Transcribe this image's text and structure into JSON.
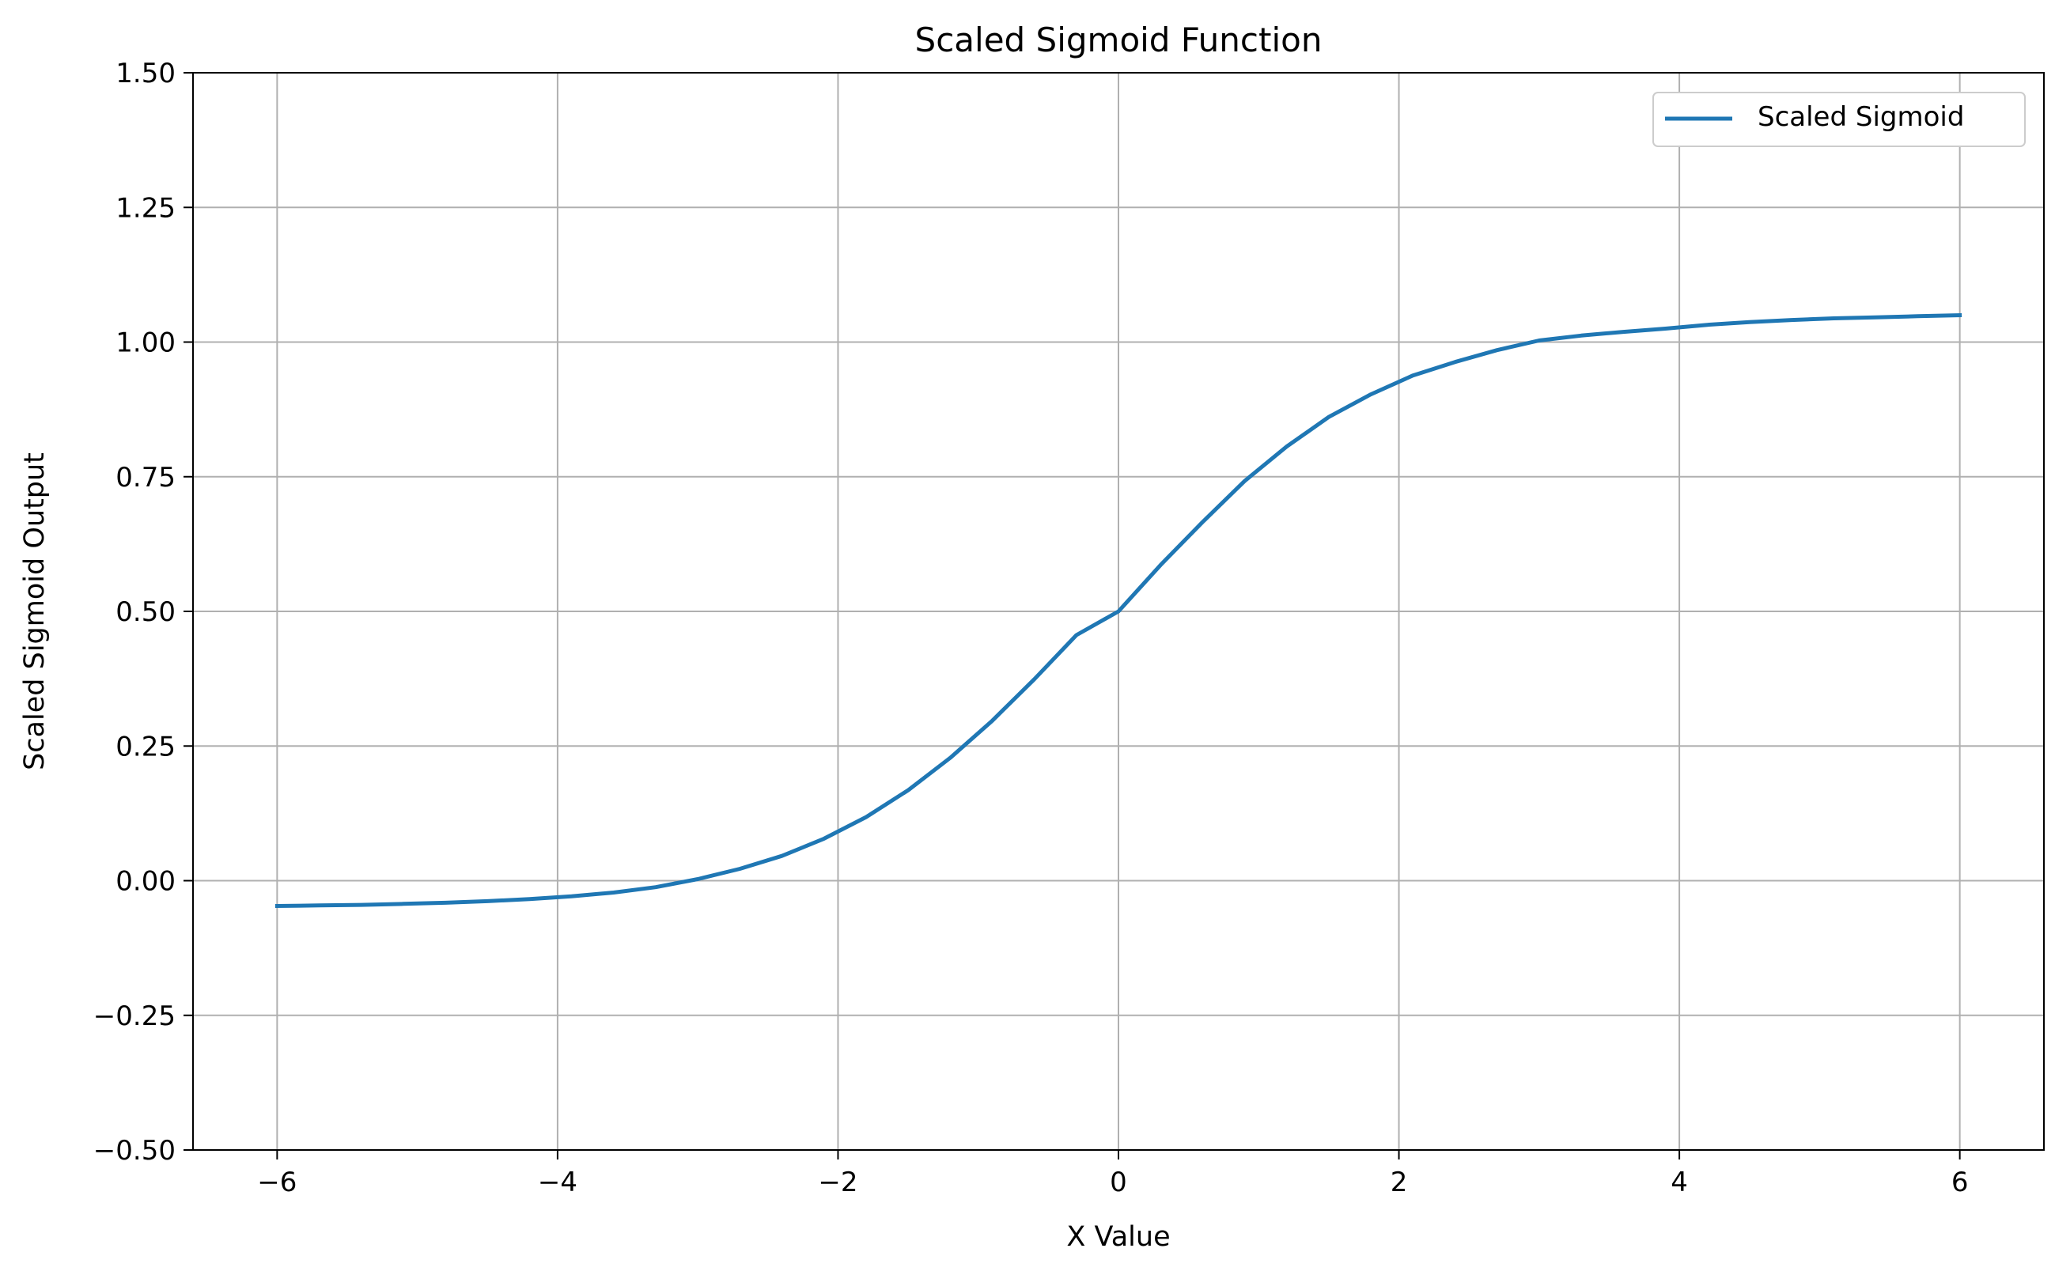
{
  "chart_data": {
    "type": "line",
    "title": "Scaled Sigmoid Function",
    "xlabel": "X Value",
    "ylabel": "Scaled Sigmoid Output",
    "xlim": [
      -6.6,
      6.6
    ],
    "ylim": [
      -0.5,
      1.5
    ],
    "grid": true,
    "legend_position": "top-right",
    "x_ticks": [
      {
        "value": -6,
        "label": "−6"
      },
      {
        "value": -4,
        "label": "−4"
      },
      {
        "value": -2,
        "label": "−2"
      },
      {
        "value": 0,
        "label": "0"
      },
      {
        "value": 2,
        "label": "2"
      },
      {
        "value": 4,
        "label": "4"
      },
      {
        "value": 6,
        "label": "6"
      }
    ],
    "y_ticks": [
      {
        "value": -0.5,
        "label": "−0.50"
      },
      {
        "value": -0.25,
        "label": "−0.25"
      },
      {
        "value": 0,
        "label": "0.00"
      },
      {
        "value": 0.25,
        "label": "0.25"
      },
      {
        "value": 0.5,
        "label": "0.50"
      },
      {
        "value": 0.75,
        "label": "0.75"
      },
      {
        "value": 1.0,
        "label": "1.00"
      },
      {
        "value": 1.25,
        "label": "1.25"
      },
      {
        "value": 1.5,
        "label": "1.50"
      }
    ],
    "series": [
      {
        "name": "Scaled Sigmoid",
        "color": "#1f77b4",
        "x": [
          -6,
          -5.7,
          -5.4,
          -5.1,
          -4.8,
          -4.5,
          -4.2,
          -3.9,
          -3.6,
          -3.3,
          -3.0,
          -2.7,
          -2.4,
          -2.1,
          -1.8,
          -1.5,
          -1.2,
          -0.9,
          -0.6,
          -0.3,
          0,
          0.3,
          0.6,
          0.9,
          1.2,
          1.5,
          1.8,
          2.1,
          2.4,
          2.7,
          3.0,
          3.3,
          3.6,
          3.9,
          4.2,
          4.5,
          4.8,
          5.1,
          5.4,
          5.7,
          6.0
        ],
        "y": [
          -0.047,
          -0.046,
          -0.045,
          -0.043,
          -0.041,
          -0.038,
          -0.034,
          -0.029,
          -0.022,
          -0.012,
          0.003,
          0.022,
          0.046,
          0.078,
          0.118,
          0.168,
          0.228,
          0.297,
          0.374,
          0.456,
          0.5,
          0.586,
          0.666,
          0.742,
          0.806,
          0.861,
          0.903,
          0.938,
          0.963,
          0.985,
          1.003,
          1.012,
          1.019,
          1.025,
          1.032,
          1.037,
          1.041,
          1.044,
          1.046,
          1.048,
          1.05
        ]
      }
    ]
  }
}
